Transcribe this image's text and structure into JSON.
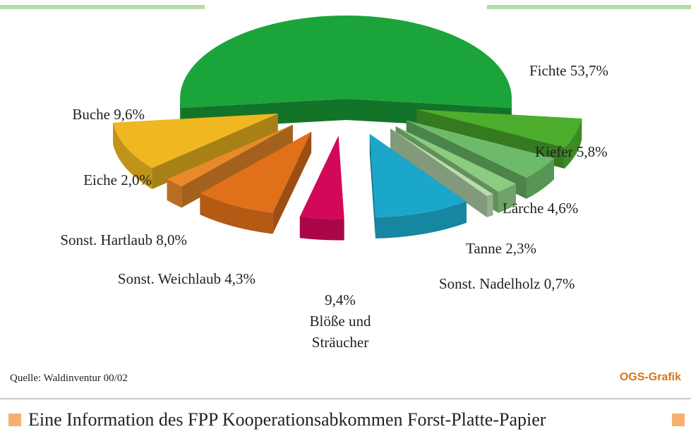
{
  "chart_data": {
    "type": "pie",
    "categories": [
      "Fichte",
      "Kiefer",
      "Lärche",
      "Tanne",
      "Sonst. Nadelholz",
      "Blöße und Sträucher",
      "Sonst. Weichlaub",
      "Sonst. Hartlaub",
      "Eiche",
      "Buche"
    ],
    "values": [
      53.7,
      5.8,
      4.6,
      2.3,
      0.7,
      9.4,
      4.3,
      8.0,
      2.0,
      9.6
    ],
    "value_labels": [
      "53,7%",
      "5,8%",
      "4,6%",
      "2,3%",
      "0,7%",
      "9,4%",
      "4,3%",
      "8,0%",
      "2,0%",
      "9,6%"
    ],
    "colors": [
      "#1ba43a",
      "#4cae2c",
      "#6dbb6a",
      "#8ccc80",
      "#b9dcb0",
      "#1ba7c9",
      "#d4085a",
      "#e0701a",
      "#e98a2a",
      "#f0b820"
    ],
    "source": "Quelle: Waldinventur 00/02",
    "credit": "OGS-Grafik",
    "footer": "Eine Information des FPP Kooperationsabkommen Forst-Platte-Papier"
  }
}
